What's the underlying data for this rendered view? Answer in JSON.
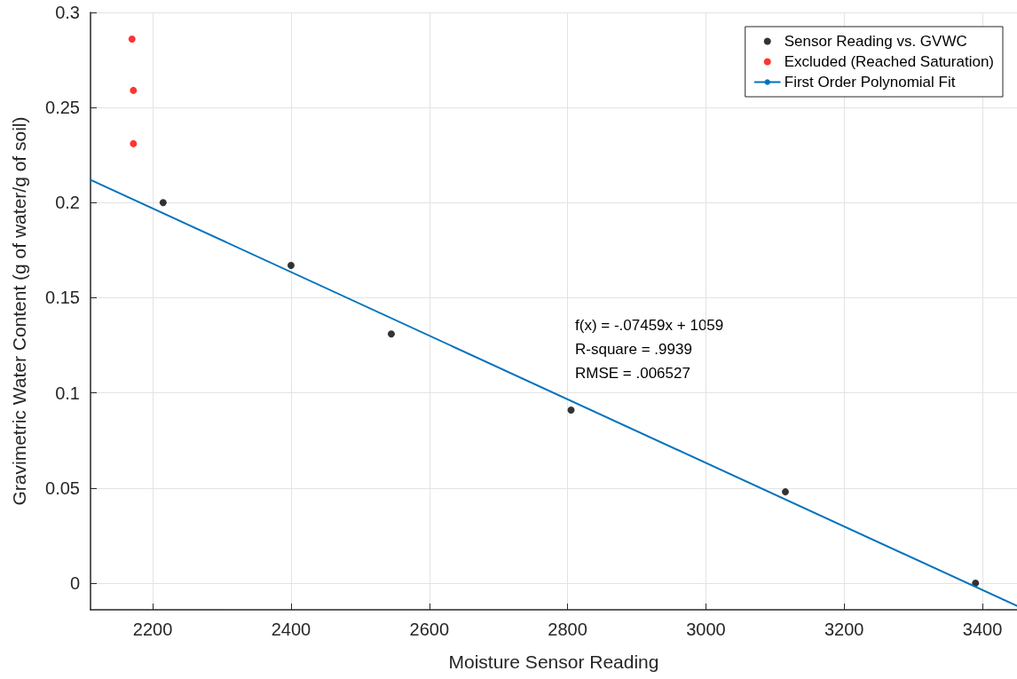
{
  "chart_data": {
    "type": "scatter",
    "xlabel": "Moisture Sensor Reading",
    "ylabel": "Gravimetric Water Content (g of water/g of soil)",
    "xlim": [
      2110,
      3450
    ],
    "ylim": [
      -0.014,
      0.3
    ],
    "xticks": [
      2200,
      2400,
      2600,
      2800,
      3000,
      3200,
      3400
    ],
    "yticks": [
      0,
      0.05,
      0.1,
      0.15,
      0.2,
      0.25,
      0.3
    ],
    "grid": true,
    "legend": "top right",
    "marker": "circle",
    "series": [
      {
        "name": "Sensor Reading vs. GVWC",
        "color": "#000000",
        "x": [
          2215,
          2400,
          2545,
          2805,
          3115,
          3390
        ],
        "values": [
          0.2,
          0.167,
          0.131,
          0.091,
          0.048,
          0.0
        ]
      },
      {
        "name": "Excluded (Reached Saturation)",
        "color": "#ff0000",
        "x": [
          2170,
          2172,
          2172
        ],
        "values": [
          0.286,
          0.259,
          0.231
        ]
      },
      {
        "name": "First Order Polynomial Fit",
        "type": "line",
        "color": "#0072bd",
        "marker": "none",
        "line_style": "solid",
        "x": [
          2110,
          3450
        ],
        "values": [
          0.212,
          -0.012
        ]
      }
    ],
    "annotations": [
      "f(x) = -.07459x + 1059",
      "R-square = .9939",
      "RMSE = .006527"
    ]
  }
}
